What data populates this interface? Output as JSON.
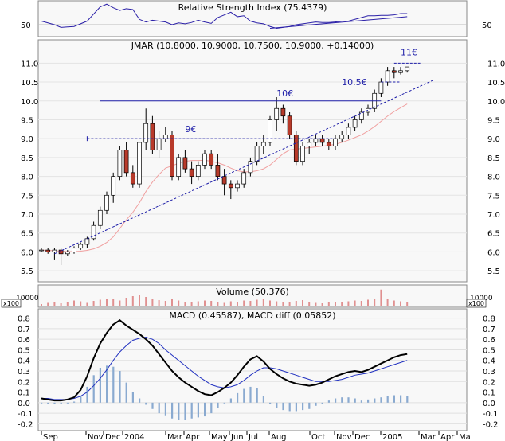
{
  "rsi": {
    "title": "Relative Strength Index (75.4379)",
    "tick_labels": [
      "50"
    ],
    "level": 50,
    "ylim": [
      25,
      100
    ],
    "line_color": "#2b20a8",
    "values": [
      58,
      54,
      50,
      44,
      45,
      46,
      52,
      58,
      74,
      90,
      96,
      88,
      82,
      86,
      84,
      62,
      56,
      60,
      58,
      56,
      50,
      54,
      52,
      55,
      60,
      56,
      53,
      66,
      72,
      78,
      68,
      70,
      58,
      54,
      52,
      46,
      42,
      44,
      46,
      50,
      52,
      54,
      56,
      55,
      55,
      56,
      58,
      58,
      62,
      66,
      70,
      70,
      71,
      71,
      72,
      75,
      75
    ]
  },
  "price": {
    "title": "JMAR (10.8000, 10.9000, 10.7500, 10.9000, +0.14000)",
    "ylim": [
      5.25,
      11.45
    ],
    "y_ticks": [
      5.5,
      6.0,
      6.5,
      7.0,
      7.5,
      8.0,
      8.5,
      9.0,
      9.5,
      10.0,
      10.5,
      11.0
    ],
    "y_tick_labels": [
      "5.5",
      "6.0",
      "6.5",
      "7.0",
      "7.5",
      "8.0",
      "8.5",
      "9.0",
      "9.5",
      "10.0",
      "10.5",
      "11.0"
    ],
    "up_color": "#ffffff",
    "down_color": "#b83a2a",
    "ma_color": "#f0a0a0",
    "annotation_color": "#1e1ea8",
    "annotations": [
      {
        "label": "9€",
        "level": 9.0
      },
      {
        "label": "10€",
        "level": 10.0
      },
      {
        "label": "10.5€",
        "level": 10.5
      },
      {
        "label": "11€",
        "level": 11.0
      }
    ]
  },
  "volume": {
    "title": "Volume (50,376)",
    "axis_label": "x100",
    "tick_label": "10000",
    "bar_color": "#e09090"
  },
  "macd": {
    "title": "MACD (0.45587), MACD diff (0.05852)",
    "ylim": [
      -0.25,
      0.85
    ],
    "y_ticks": [
      -0.2,
      -0.1,
      0.0,
      0.1,
      0.2,
      0.3,
      0.4,
      0.5,
      0.6,
      0.7,
      0.8
    ],
    "y_tick_labels": [
      "-0.2",
      "-0.1",
      "0.0",
      "0.1",
      "0.2",
      "0.3",
      "0.4",
      "0.5",
      "0.6",
      "0.7",
      "0.8"
    ],
    "macd_color": "#000000",
    "signal_color": "#2030c0",
    "hist_color": "#8aaad0"
  },
  "x_axis": {
    "labels": [
      "Sep",
      "Nov",
      "Dec",
      "2004",
      "Mar",
      "Apr",
      "May",
      "Jun",
      "Jul",
      "Aug",
      "Oct",
      "Nov",
      "Dec",
      "2005",
      "Mar",
      "Apr",
      "Ma"
    ]
  },
  "chart_data": [
    {
      "type": "line",
      "title": "Relative Strength Index (75.4379)",
      "series": [
        {
          "values": [
            58,
            54,
            50,
            44,
            45,
            46,
            52,
            58,
            74,
            90,
            96,
            88,
            82,
            86,
            84,
            62,
            56,
            60,
            58,
            56,
            50,
            54,
            52,
            55,
            60,
            56,
            53,
            66,
            72,
            78,
            68,
            70,
            58,
            54,
            52,
            46,
            42,
            44,
            46,
            50,
            52,
            54,
            56,
            55,
            55,
            56,
            58,
            58,
            62,
            66,
            70,
            70,
            71,
            71,
            72,
            75,
            75
          ]
        }
      ]
    },
    {
      "type": "candlestick",
      "title": "JMAR (10.8000, 10.9000, 10.7500, 10.9000, +0.14000)",
      "ylim": [
        5.25,
        11.45
      ],
      "series": [
        {
          "name": "candles",
          "ohlc": [
            [
              6.05,
              6.1,
              6.0,
              6.05
            ],
            [
              6.05,
              6.1,
              5.95,
              6.0
            ],
            [
              6.0,
              6.1,
              5.8,
              6.05
            ],
            [
              6.05,
              6.1,
              5.65,
              5.95
            ],
            [
              5.95,
              6.05,
              5.9,
              6.0
            ],
            [
              6.0,
              6.15,
              5.95,
              6.1
            ],
            [
              6.1,
              6.25,
              6.05,
              6.2
            ],
            [
              6.2,
              6.4,
              6.1,
              6.35
            ],
            [
              6.35,
              6.8,
              6.3,
              6.7
            ],
            [
              6.7,
              7.2,
              6.6,
              7.1
            ],
            [
              7.1,
              7.6,
              7.0,
              7.5
            ],
            [
              7.5,
              8.1,
              7.3,
              8.0
            ],
            [
              8.0,
              8.8,
              7.9,
              8.7
            ],
            [
              8.7,
              8.9,
              8.0,
              8.1
            ],
            [
              8.1,
              8.3,
              7.7,
              7.8
            ],
            [
              7.8,
              8.9,
              7.7,
              8.9
            ],
            [
              8.9,
              9.8,
              8.7,
              9.4
            ],
            [
              9.4,
              9.6,
              8.6,
              8.7
            ],
            [
              8.7,
              9.2,
              8.5,
              9.0
            ],
            [
              9.0,
              9.3,
              8.9,
              9.1
            ],
            [
              9.1,
              9.2,
              7.9,
              8.0
            ],
            [
              8.0,
              8.6,
              7.9,
              8.5
            ],
            [
              8.5,
              8.7,
              8.1,
              8.2
            ],
            [
              8.2,
              8.4,
              7.8,
              8.0
            ],
            [
              8.0,
              8.4,
              7.9,
              8.3
            ],
            [
              8.3,
              8.7,
              8.2,
              8.6
            ],
            [
              8.6,
              8.7,
              8.2,
              8.3
            ],
            [
              8.3,
              8.6,
              7.9,
              8.0
            ],
            [
              8.0,
              8.2,
              7.5,
              7.8
            ],
            [
              7.8,
              7.9,
              7.4,
              7.7
            ],
            [
              7.7,
              7.9,
              7.6,
              7.8
            ],
            [
              7.8,
              8.2,
              7.7,
              8.1
            ],
            [
              8.1,
              8.5,
              8.0,
              8.4
            ],
            [
              8.4,
              8.9,
              8.3,
              8.8
            ],
            [
              8.8,
              9.1,
              8.6,
              8.9
            ],
            [
              8.9,
              9.6,
              8.8,
              9.5
            ],
            [
              9.5,
              10.1,
              9.2,
              9.8
            ],
            [
              9.8,
              9.9,
              9.4,
              9.6
            ],
            [
              9.6,
              9.7,
              9.0,
              9.1
            ],
            [
              9.1,
              9.2,
              8.3,
              8.4
            ],
            [
              8.4,
              8.9,
              8.3,
              8.8
            ],
            [
              8.8,
              9.0,
              8.6,
              8.9
            ],
            [
              8.9,
              9.1,
              8.8,
              9.0
            ],
            [
              9.0,
              9.1,
              8.8,
              8.9
            ],
            [
              8.9,
              9.0,
              8.7,
              8.8
            ],
            [
              8.8,
              9.1,
              8.7,
              9.0
            ],
            [
              9.0,
              9.2,
              8.9,
              9.1
            ],
            [
              9.1,
              9.4,
              9.0,
              9.3
            ],
            [
              9.3,
              9.6,
              9.2,
              9.5
            ],
            [
              9.5,
              9.8,
              9.4,
              9.7
            ],
            [
              9.7,
              9.9,
              9.6,
              9.8
            ],
            [
              9.8,
              10.3,
              9.7,
              10.2
            ],
            [
              10.2,
              10.6,
              10.1,
              10.5
            ],
            [
              10.5,
              10.9,
              10.4,
              10.8
            ],
            [
              10.8,
              10.9,
              10.6,
              10.75
            ],
            [
              10.75,
              10.9,
              10.7,
              10.8
            ],
            [
              10.8,
              10.9,
              10.75,
              10.9
            ]
          ]
        },
        {
          "name": "ma",
          "values": [
            6.05,
            6.04,
            6.03,
            6.02,
            6.01,
            6.01,
            6.02,
            6.04,
            6.08,
            6.15,
            6.25,
            6.4,
            6.62,
            6.85,
            7.05,
            7.3,
            7.6,
            7.85,
            8.05,
            8.22,
            8.28,
            8.35,
            8.4,
            8.42,
            8.42,
            8.43,
            8.4,
            8.36,
            8.3,
            8.22,
            8.15,
            8.12,
            8.12,
            8.15,
            8.2,
            8.3,
            8.45,
            8.6,
            8.7,
            8.72,
            8.74,
            8.76,
            8.78,
            8.8,
            8.82,
            8.85,
            8.9,
            8.96,
            9.03,
            9.1,
            9.2,
            9.32,
            9.46,
            9.6,
            9.72,
            9.82,
            9.92
          ]
        }
      ]
    },
    {
      "type": "bar",
      "title": "Volume (50,376)",
      "series": [
        {
          "values": [
            12,
            18,
            20,
            16,
            22,
            30,
            26,
            18,
            28,
            34,
            40,
            36,
            30,
            44,
            52,
            60,
            48,
            40,
            32,
            28,
            36,
            30,
            24,
            20,
            26,
            30,
            28,
            22,
            18,
            26,
            24,
            30,
            28,
            34,
            36,
            30,
            26,
            24,
            20,
            28,
            32,
            22,
            18,
            16,
            20,
            24,
            22,
            26,
            30,
            28,
            34,
            40,
            85,
            36,
            30,
            26,
            22
          ]
        }
      ]
    },
    {
      "type": "line",
      "title": "MACD (0.45587), MACD diff (0.05852)",
      "ylim": [
        -0.25,
        0.85
      ],
      "series": [
        {
          "name": "MACD",
          "values": [
            0.04,
            0.03,
            0.02,
            0.02,
            0.03,
            0.05,
            0.12,
            0.25,
            0.42,
            0.56,
            0.66,
            0.74,
            0.78,
            0.73,
            0.69,
            0.65,
            0.6,
            0.54,
            0.46,
            0.38,
            0.3,
            0.24,
            0.19,
            0.15,
            0.11,
            0.08,
            0.07,
            0.1,
            0.14,
            0.19,
            0.26,
            0.34,
            0.41,
            0.44,
            0.39,
            0.32,
            0.27,
            0.23,
            0.2,
            0.18,
            0.17,
            0.16,
            0.17,
            0.19,
            0.22,
            0.25,
            0.27,
            0.29,
            0.3,
            0.29,
            0.31,
            0.34,
            0.37,
            0.4,
            0.43,
            0.45,
            0.46
          ]
        },
        {
          "name": "signal",
          "values": [
            0.04,
            0.04,
            0.03,
            0.03,
            0.03,
            0.04,
            0.06,
            0.1,
            0.16,
            0.23,
            0.31,
            0.4,
            0.48,
            0.54,
            0.59,
            0.61,
            0.62,
            0.6,
            0.56,
            0.5,
            0.45,
            0.4,
            0.35,
            0.3,
            0.25,
            0.21,
            0.17,
            0.15,
            0.14,
            0.15,
            0.17,
            0.21,
            0.26,
            0.3,
            0.33,
            0.33,
            0.32,
            0.3,
            0.28,
            0.26,
            0.24,
            0.22,
            0.2,
            0.2,
            0.2,
            0.21,
            0.22,
            0.24,
            0.26,
            0.27,
            0.28,
            0.3,
            0.32,
            0.34,
            0.36,
            0.38,
            0.4
          ]
        },
        {
          "name": "hist",
          "values": [
            0.0,
            -0.01,
            -0.01,
            -0.01,
            0.0,
            0.01,
            0.06,
            0.15,
            0.26,
            0.33,
            0.35,
            0.34,
            0.3,
            0.19,
            0.1,
            0.04,
            -0.02,
            -0.06,
            -0.1,
            -0.12,
            -0.15,
            -0.16,
            -0.16,
            -0.15,
            -0.14,
            -0.13,
            -0.1,
            -0.05,
            0.0,
            0.04,
            0.09,
            0.13,
            0.15,
            0.14,
            0.06,
            -0.01,
            -0.05,
            -0.07,
            -0.08,
            -0.08,
            -0.07,
            -0.06,
            -0.03,
            -0.01,
            0.02,
            0.04,
            0.05,
            0.05,
            0.04,
            0.02,
            0.03,
            0.04,
            0.05,
            0.06,
            0.07,
            0.07,
            0.06
          ]
        }
      ]
    }
  ]
}
